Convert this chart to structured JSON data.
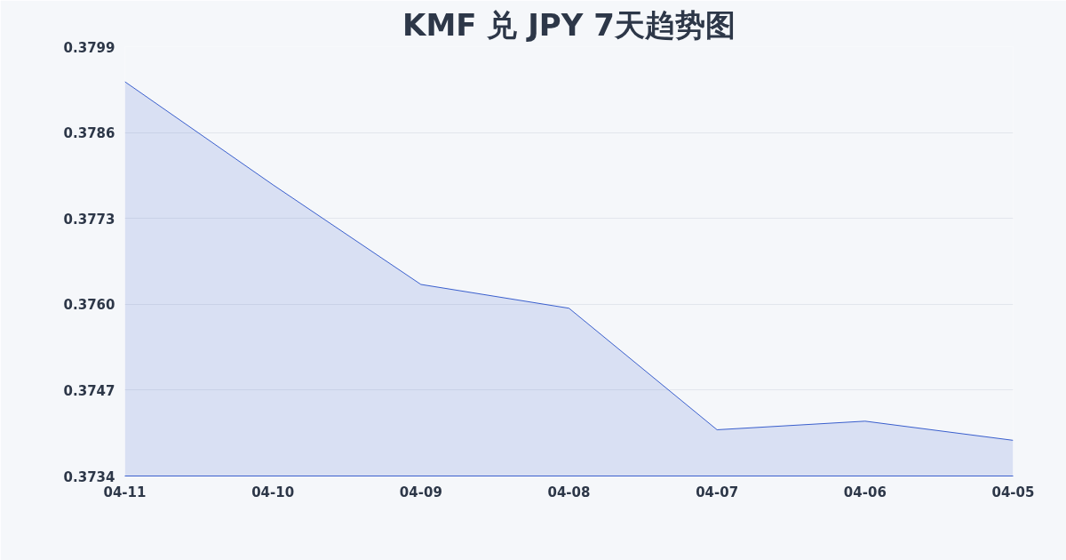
{
  "chart_data": {
    "type": "area",
    "title": "KMF 兑 JPY 7天趋势图",
    "categories": [
      "04-11",
      "04-10",
      "04-09",
      "04-08",
      "04-07",
      "04-06",
      "04-05"
    ],
    "series": [
      {
        "color": "#3a5fcd",
        "values": [
          0.37937,
          0.37781,
          0.3763,
          0.37594,
          0.3741,
          0.37423,
          0.37394
        ]
      }
    ],
    "ylim": [
      0.3734,
      0.3799
    ],
    "yticks": [
      0.3734,
      0.3747,
      {
        "value": 0.376,
        "label": "0.3760"
      },
      0.3773,
      0.3786,
      0.3799
    ],
    "grid": "y"
  }
}
